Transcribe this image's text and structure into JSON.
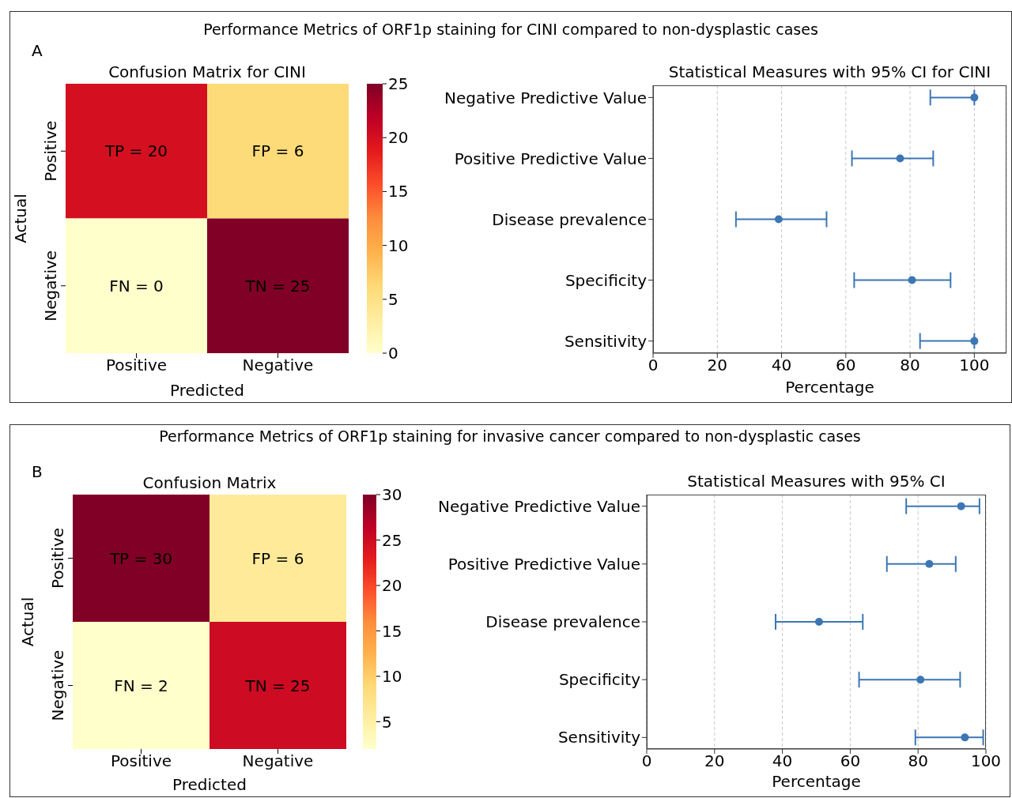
{
  "chart_data": [
    {
      "type": "heatmap",
      "title": "Confusion Matrix for CINI",
      "xlabel": "Predicted",
      "ylabel": "Actual",
      "categories": [
        "Positive",
        "Negative"
      ],
      "y_categories": [
        "Positive",
        "Negative"
      ],
      "cells": [
        [
          20,
          6
        ],
        [
          0,
          25
        ]
      ],
      "cell_labels": [
        [
          "TP = 20",
          "FP = 6"
        ],
        [
          "FN = 0",
          "TN = 25"
        ]
      ],
      "clim": [
        0,
        25
      ],
      "cticks": [
        0,
        5,
        10,
        15,
        20,
        25
      ],
      "annotations": [
        "Performance Metrics of ORF1p staining for CINI compared to non-dysplastic cases",
        "A"
      ]
    },
    {
      "type": "scatter",
      "orientation": "horizontal",
      "title": "Statistical Measures with 95% CI for CINI",
      "xlabel": "Percentage",
      "categories": [
        "Negative Predictive Value",
        "Positive Predictive Value",
        "Disease prevalence",
        "Specificity",
        "Sensitivity"
      ],
      "values": [
        100,
        76.9,
        39.1,
        80.6,
        100
      ],
      "errors": [
        [
          86.3,
          100
        ],
        [
          61.9,
          87.2
        ],
        [
          25.8,
          54.0
        ],
        [
          62.6,
          92.6
        ],
        [
          83.1,
          100
        ]
      ],
      "color": "#3c76b4",
      "marker": "circle",
      "xlim": [
        0,
        110
      ],
      "xticks": [
        0,
        20,
        40,
        60,
        80,
        100
      ],
      "grid": "x"
    },
    {
      "type": "heatmap",
      "title": "Confusion Matrix",
      "xlabel": "Predicted",
      "ylabel": "Actual",
      "categories": [
        "Positive",
        "Negative"
      ],
      "y_categories": [
        "Positive",
        "Negative"
      ],
      "cells": [
        [
          30,
          6
        ],
        [
          2,
          25
        ]
      ],
      "cell_labels": [
        [
          "TP = 30",
          "FP = 6"
        ],
        [
          "FN = 2",
          "TN = 25"
        ]
      ],
      "clim": [
        2,
        30
      ],
      "cticks": [
        5,
        10,
        15,
        20,
        25,
        30
      ],
      "annotations": [
        "Performance Metrics of ORF1p staining for invasive cancer compared to non-dysplastic cases",
        "B"
      ]
    },
    {
      "type": "scatter",
      "orientation": "horizontal",
      "title": "Statistical Measures with 95% CI",
      "xlabel": "Percentage",
      "categories": [
        "Negative Predictive Value",
        "Positive Predictive Value",
        "Disease prevalence",
        "Specificity",
        "Sensitivity"
      ],
      "values": [
        92.7,
        83.3,
        50.8,
        80.7,
        93.8
      ],
      "errors": [
        [
          76.5,
          98.1
        ],
        [
          70.8,
          91.1
        ],
        [
          38.0,
          63.7
        ],
        [
          62.6,
          92.4
        ],
        [
          79.2,
          99.2
        ]
      ],
      "color": "#3c76b4",
      "marker": "circle",
      "xlim": [
        0,
        100
      ],
      "xticks": [
        0,
        20,
        40,
        60,
        80,
        100
      ],
      "grid": "x"
    }
  ]
}
